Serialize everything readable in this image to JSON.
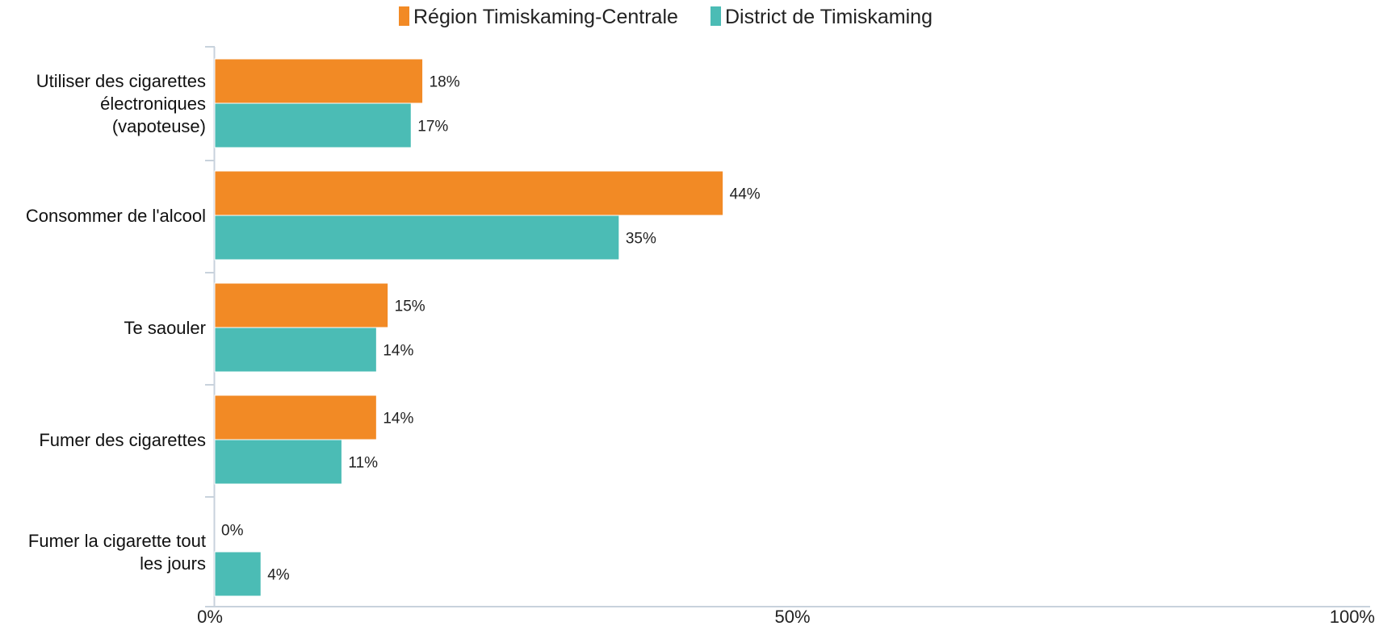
{
  "chart_data": {
    "type": "bar",
    "orientation": "horizontal",
    "categories": [
      [
        "Utiliser des cigarettes",
        "électroniques",
        "(vapoteuse)"
      ],
      [
        "Consommer de l'alcool"
      ],
      [
        "Te saouler"
      ],
      [
        "Fumer des cigarettes"
      ],
      [
        "Fumer la cigarette tout",
        "les jours"
      ]
    ],
    "series": [
      {
        "name": "Région Timiskaming-Centrale",
        "color": "#f28a25",
        "values": [
          18,
          44,
          15,
          14,
          0
        ],
        "labels": [
          "18%",
          "44%",
          "15%",
          "14%",
          "0%"
        ]
      },
      {
        "name": "District de Timiskaming",
        "color": "#4bbcb5",
        "values": [
          17,
          35,
          14,
          11,
          4
        ],
        "labels": [
          "17%",
          "35%",
          "14%",
          "11%",
          "4%"
        ]
      }
    ],
    "xlim": [
      0,
      100
    ],
    "x_ticks": [
      0,
      50,
      100
    ],
    "x_tick_labels": [
      "0%",
      "50%",
      "100%"
    ],
    "legend_position": "top-center",
    "grid": false,
    "title": "",
    "xlabel": "",
    "ylabel": ""
  }
}
